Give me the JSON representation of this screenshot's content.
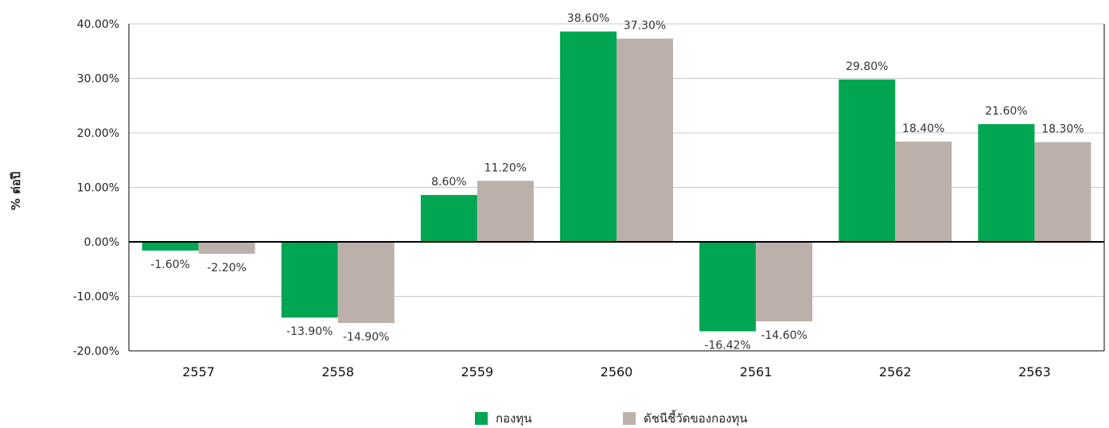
{
  "chart_data": {
    "type": "bar",
    "categories": [
      "2557",
      "2558",
      "2559",
      "2560",
      "2561",
      "2562",
      "2563"
    ],
    "series": [
      {
        "name": "กองทุน",
        "color": "#00a651",
        "values": [
          -1.6,
          -13.9,
          8.6,
          38.6,
          -16.42,
          29.8,
          21.6
        ],
        "labels": [
          "-1.60%",
          "-13.90%",
          "8.60%",
          "38.60%",
          "-16.42%",
          "29.80%",
          "21.60%"
        ]
      },
      {
        "name": "ดัชนีชี้วัดของกองทุน",
        "color": "#bcb1aa",
        "values": [
          -2.2,
          -14.9,
          11.2,
          37.3,
          -14.6,
          18.4,
          18.3
        ],
        "labels": [
          "-2.20%",
          "-14.90%",
          "11.20%",
          "37.30%",
          "-14.60%",
          "18.40%",
          "18.30%"
        ]
      }
    ],
    "ylabel": "% ต่อปี",
    "ylim": [
      -20,
      40
    ],
    "yticks": [
      -20,
      -10,
      0,
      10,
      20,
      30,
      40
    ],
    "ytick_labels": [
      "-20.00%",
      "-10.00%",
      "0.00%",
      "10.00%",
      "20.00%",
      "30.00%",
      "40.00%"
    ],
    "grid": true,
    "legend_position": "bottom"
  }
}
